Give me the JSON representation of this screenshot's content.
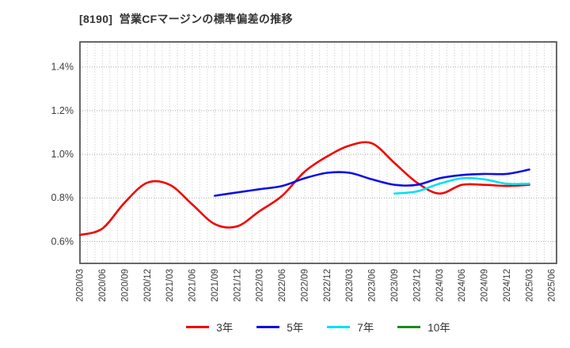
{
  "chart_data": {
    "type": "line",
    "title": "[8190]  営業CFマージンの標準偏差の推移",
    "unit": "%",
    "categories": [
      "2020/03",
      "2020/06",
      "2020/09",
      "2020/12",
      "2021/03",
      "2021/06",
      "2021/09",
      "2021/12",
      "2022/03",
      "2022/06",
      "2022/09",
      "2022/12",
      "2023/03",
      "2023/06",
      "2023/09",
      "2023/12",
      "2024/03",
      "2024/06",
      "2024/09",
      "2024/12",
      "2025/03",
      "2025/06"
    ],
    "ylim": [
      0.5,
      1.515
    ],
    "yticks": [
      0.6,
      0.8,
      1.0,
      1.2,
      1.4
    ],
    "ytick_format": "0.0%",
    "x_tick_rotation": 90,
    "grid": "dotted; vertical minor lines monthly, horizontal at y ticks",
    "legend_position": "bottom-center",
    "series": [
      {
        "id": "3y",
        "name": "3年",
        "color": "#f20000",
        "values": [
          0.63,
          0.66,
          0.78,
          0.87,
          0.86,
          0.77,
          0.68,
          0.67,
          0.74,
          0.81,
          0.92,
          0.99,
          1.04,
          1.05,
          0.96,
          0.87,
          0.82,
          0.86,
          0.86,
          0.855,
          0.86,
          null
        ]
      },
      {
        "id": "5y",
        "name": "5年",
        "color": "#0d0de8",
        "values": [
          null,
          null,
          null,
          null,
          null,
          null,
          0.81,
          0.825,
          0.84,
          0.855,
          0.89,
          0.915,
          0.915,
          0.885,
          0.86,
          0.86,
          0.89,
          0.905,
          0.91,
          0.91,
          0.93,
          null
        ]
      },
      {
        "id": "7y",
        "name": "7年",
        "color": "#00e0f2",
        "values": [
          null,
          null,
          null,
          null,
          null,
          null,
          null,
          null,
          null,
          null,
          null,
          null,
          null,
          null,
          0.82,
          0.83,
          0.865,
          0.89,
          0.885,
          0.865,
          0.865,
          null
        ]
      },
      {
        "id": "10y",
        "name": "10年",
        "color": "#1d8a1d",
        "values": [
          null,
          null,
          null,
          null,
          null,
          null,
          null,
          null,
          null,
          null,
          null,
          null,
          null,
          null,
          null,
          null,
          null,
          null,
          null,
          null,
          null,
          null
        ]
      }
    ]
  }
}
